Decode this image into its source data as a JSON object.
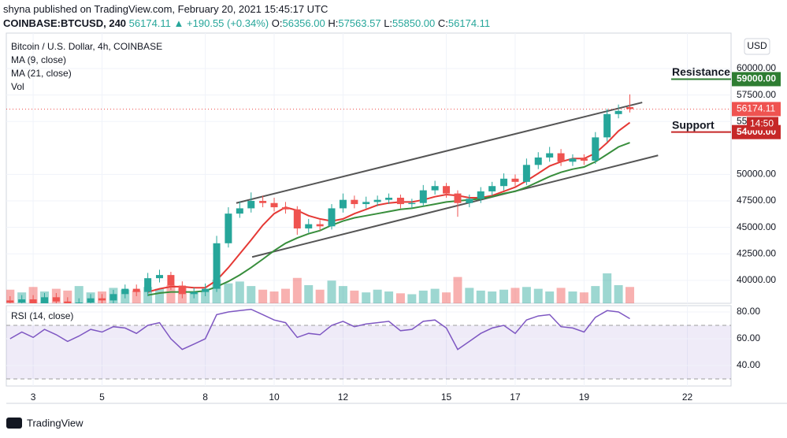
{
  "header": {
    "publisher": "shyna published on TradingView.com, February 20, 2021 15:45:17 UTC",
    "symbol": "COINBASE:BTCUSD, 240",
    "last": "56174.11",
    "arrow": "▲",
    "change": "+190.55 (+0.34%)",
    "o_label": "O:",
    "o": "56356.00",
    "h_label": "H:",
    "h": "57563.57",
    "l_label": "L:",
    "l": "55850.00",
    "c_label": "C:",
    "c": "56174.11"
  },
  "chart_data": [
    {
      "type": "candlestick",
      "title": "Bitcoin / U.S. Dollar, 4h, COINBASE",
      "currency": "USD",
      "x": [
        2.33,
        2.67,
        3.0,
        3.33,
        3.67,
        4.0,
        4.33,
        4.67,
        5.0,
        5.33,
        5.67,
        6.0,
        6.33,
        6.67,
        7.0,
        7.33,
        7.67,
        8.0,
        8.33,
        8.67,
        9.0,
        9.33,
        9.67,
        10.0,
        10.33,
        10.67,
        11.0,
        11.33,
        11.67,
        12.0,
        12.33,
        12.67,
        13.0,
        13.33,
        13.67,
        14.0,
        14.33,
        14.67,
        15.0,
        15.33,
        15.67,
        16.0,
        16.33,
        16.67,
        17.0,
        17.33,
        17.67,
        18.0,
        18.33,
        18.67,
        19.0,
        19.33,
        19.67,
        20.0,
        20.33
      ],
      "open": [
        38100,
        37900,
        38200,
        37800,
        38400,
        38000,
        37600,
        37900,
        38300,
        38100,
        38700,
        39200,
        38900,
        40200,
        40500,
        39500,
        38700,
        38900,
        39200,
        43500,
        46300,
        46800,
        47500,
        47300,
        46900,
        46700,
        44900,
        45300,
        45100,
        46800,
        47600,
        47200,
        47400,
        47600,
        47800,
        47200,
        47300,
        48500,
        48900,
        48200,
        47300,
        47700,
        48400,
        48900,
        49600,
        49300,
        50900,
        51600,
        52000,
        51200,
        51500,
        51300,
        53500,
        55700,
        56356
      ],
      "high": [
        38500,
        38600,
        38600,
        38800,
        38800,
        38400,
        38300,
        38700,
        38700,
        39100,
        39600,
        39600,
        40700,
        41000,
        40800,
        39900,
        39300,
        39700,
        44200,
        46900,
        47400,
        48300,
        48000,
        47800,
        47400,
        47000,
        45800,
        45700,
        47200,
        48200,
        48000,
        47900,
        48000,
        48200,
        48100,
        47700,
        49000,
        49400,
        49200,
        48500,
        48100,
        48800,
        49300,
        50100,
        50000,
        51500,
        52100,
        52600,
        52400,
        51900,
        51900,
        54000,
        56200,
        56600,
        57563.57
      ],
      "low": [
        37500,
        37500,
        37400,
        37400,
        37600,
        37200,
        37200,
        37500,
        37700,
        37700,
        38300,
        38500,
        38500,
        39800,
        39100,
        38300,
        38300,
        38500,
        38900,
        43100,
        45900,
        46400,
        46900,
        46500,
        46300,
        44300,
        44500,
        44700,
        44800,
        46400,
        46800,
        46800,
        47000,
        47200,
        46800,
        46800,
        47000,
        48100,
        47800,
        46000,
        46900,
        47300,
        48000,
        48500,
        48900,
        49000,
        50500,
        51200,
        50800,
        50800,
        50900,
        51000,
        53100,
        55300,
        55850
      ],
      "close": [
        37900,
        38200,
        37800,
        38400,
        38000,
        37600,
        37900,
        38300,
        38100,
        38700,
        39200,
        38900,
        40200,
        40500,
        39500,
        38700,
        38900,
        39200,
        43500,
        46300,
        46800,
        47500,
        47300,
        46900,
        46700,
        44900,
        45300,
        45100,
        46800,
        47600,
        47200,
        47400,
        47600,
        47800,
        47200,
        47300,
        48500,
        48900,
        48200,
        47300,
        47700,
        48400,
        48900,
        49600,
        49300,
        50900,
        51600,
        52000,
        51200,
        51500,
        51300,
        53500,
        55700,
        56000,
        56174.11
      ],
      "up_color": "#26a69a",
      "down_color": "#ef5350",
      "volume": {
        "name": "Vol",
        "values": [
          1500,
          1200,
          1800,
          1300,
          1600,
          1400,
          1900,
          1200,
          1300,
          1700,
          1500,
          1400,
          1800,
          1600,
          2000,
          1700,
          1300,
          1400,
          2600,
          2200,
          2400,
          1900,
          1500,
          1300,
          1600,
          2800,
          2000,
          1500,
          2500,
          1900,
          1400,
          1200,
          1500,
          1300,
          1100,
          1000,
          1400,
          1600,
          1200,
          2900,
          1700,
          1400,
          1300,
          1500,
          1700,
          1800,
          1600,
          1300,
          1700,
          1300,
          1200,
          1900,
          3300,
          2000,
          1800
        ]
      },
      "series": [
        {
          "name": "MA (9, close)",
          "color": "#e53935",
          "values": [
            null,
            null,
            null,
            null,
            null,
            null,
            null,
            null,
            null,
            null,
            null,
            null,
            38900,
            39200,
            39400,
            39400,
            39300,
            39300,
            40000,
            41200,
            42500,
            43800,
            45200,
            46300,
            46900,
            46600,
            46100,
            45800,
            45600,
            45800,
            46300,
            46700,
            47100,
            47300,
            47400,
            47400,
            47600,
            47900,
            48100,
            48000,
            47800,
            47800,
            48000,
            48400,
            48800,
            49400,
            50100,
            50800,
            51200,
            51500,
            51500,
            52000,
            53000,
            54100,
            54900
          ]
        },
        {
          "name": "MA (21, close)",
          "color": "#388e3c",
          "values": [
            null,
            null,
            null,
            null,
            null,
            null,
            null,
            null,
            null,
            null,
            null,
            null,
            38600,
            38800,
            38900,
            38900,
            38900,
            39000,
            39400,
            39900,
            40500,
            41200,
            42000,
            42800,
            43500,
            44000,
            44400,
            44700,
            45200,
            45600,
            45900,
            46100,
            46300,
            46500,
            46700,
            46800,
            47000,
            47200,
            47400,
            47500,
            47600,
            47700,
            47900,
            48200,
            48400,
            48800,
            49300,
            49800,
            50200,
            50500,
            50700,
            51200,
            51900,
            52600,
            53000
          ]
        }
      ],
      "xlim": [
        2.22,
        23.27
      ],
      "ylim": [
        37830,
        63350
      ],
      "yticks": [
        {
          "value": 40000,
          "label": "40000.00"
        },
        {
          "value": 42500,
          "label": "42500.00"
        },
        {
          "value": 45000,
          "label": "45000.00"
        },
        {
          "value": 47500,
          "label": "47500.00"
        },
        {
          "value": 50000,
          "label": "50000.00"
        },
        {
          "value": 55000,
          "label": "55000.00"
        },
        {
          "value": 57500,
          "label": "57500.00"
        },
        {
          "value": 60000,
          "label": "60000.00"
        }
      ],
      "grid": true,
      "last_price": {
        "value": 56174.11,
        "label": "56174.11",
        "countdown": "14:50"
      },
      "levels": [
        {
          "name": "Resistance",
          "value": 59000,
          "value_label": "59000.00",
          "text_color": "#e53935",
          "line_color": "#2e7d32"
        },
        {
          "name": "Support",
          "value": 54000,
          "value_label": "54000.00",
          "text_color": "#2e7d32",
          "line_color": "#c62828"
        }
      ],
      "trendlines": [
        {
          "x": [
            8.9,
            20.69
          ],
          "y": [
            47300,
            56800
          ]
        },
        {
          "x": [
            9.36,
            21.15
          ],
          "y": [
            42200,
            51800
          ]
        }
      ]
    },
    {
      "type": "line",
      "x": [
        2.33,
        2.67,
        3.0,
        3.33,
        3.67,
        4.0,
        4.33,
        4.67,
        5.0,
        5.33,
        5.67,
        6.0,
        6.33,
        6.67,
        7.0,
        7.33,
        7.67,
        8.0,
        8.33,
        8.67,
        9.0,
        9.33,
        9.67,
        10.0,
        10.33,
        10.67,
        11.0,
        11.33,
        11.67,
        12.0,
        12.33,
        12.67,
        13.0,
        13.33,
        13.67,
        14.0,
        14.33,
        14.67,
        15.0,
        15.33,
        15.67,
        16.0,
        16.33,
        16.67,
        17.0,
        17.33,
        17.67,
        18.0,
        18.33,
        18.67,
        19.0,
        19.33,
        19.67,
        20.0,
        20.33
      ],
      "series": [
        {
          "name": "RSI (14, close)",
          "color": "#7e57c2",
          "values": [
            60,
            65,
            61,
            67,
            63,
            58,
            62,
            67,
            65,
            69,
            68,
            64,
            70,
            72,
            60,
            52,
            56,
            60,
            78,
            80,
            81,
            82,
            78,
            74,
            72,
            61,
            64,
            63,
            70,
            73,
            69,
            71,
            72,
            73,
            66,
            67,
            73,
            74,
            68,
            52,
            58,
            64,
            68,
            70,
            64,
            74,
            77,
            78,
            69,
            68,
            65,
            76,
            81,
            80,
            75
          ]
        }
      ],
      "band": [
        30,
        70
      ],
      "xlim": [
        2.22,
        23.27
      ],
      "xticks": [
        3,
        5,
        8,
        10,
        12,
        15,
        17,
        19,
        22
      ],
      "ylim": [
        24.7,
        84.7
      ],
      "yticks": [
        {
          "value": 40,
          "label": "40.00"
        },
        {
          "value": 60,
          "label": "60.00"
        },
        {
          "value": 80,
          "label": "80.00"
        }
      ],
      "grid": true
    }
  ],
  "footer": {
    "brand": "TradingView"
  }
}
